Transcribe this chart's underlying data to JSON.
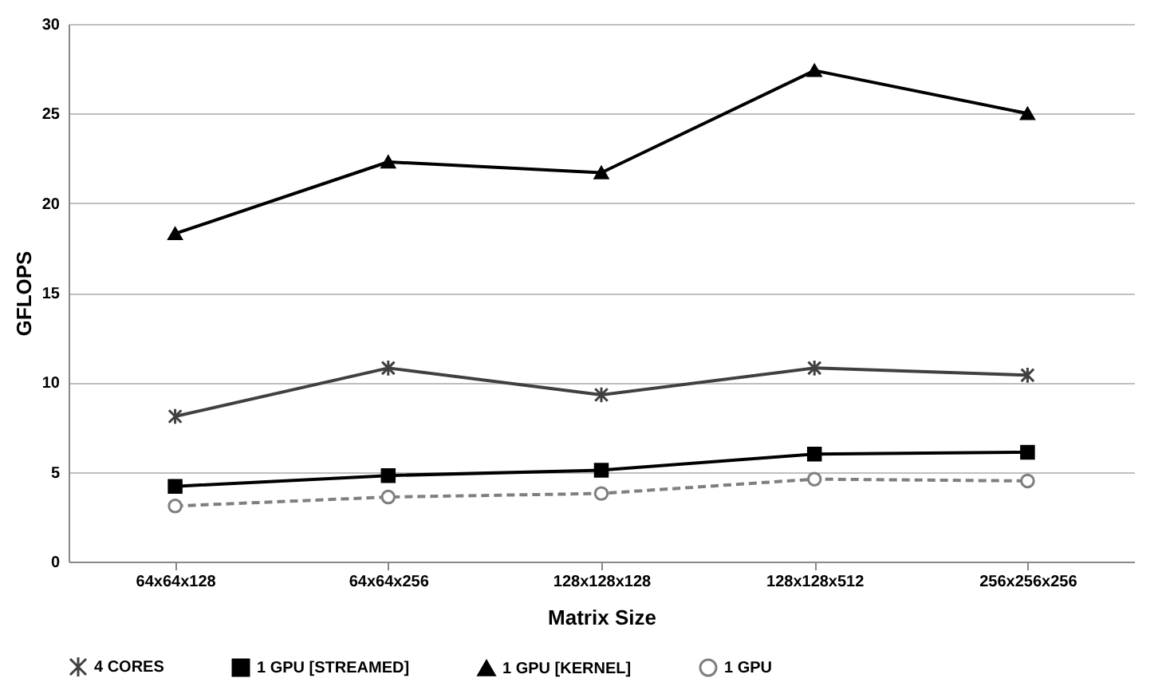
{
  "chart_data": {
    "type": "line",
    "xlabel": "Matrix Size",
    "ylabel": "GFLOPS",
    "categories": [
      "64x64x128",
      "64x64x256",
      "128x128x128",
      "128x128x512",
      "256x256x256"
    ],
    "ylim": [
      0,
      30
    ],
    "yticks": [
      0,
      5,
      10,
      15,
      20,
      25,
      30
    ],
    "grid": "y",
    "legend": "bottom",
    "series": [
      {
        "name": "4 CORES",
        "color": "#404040",
        "marker": "cross",
        "line_style": "solid",
        "values": [
          8.1,
          10.8,
          9.3,
          10.8,
          10.4
        ]
      },
      {
        "name": "1 GPU [STREAMED]",
        "color": "#000000",
        "marker": "square",
        "line_style": "solid",
        "values": [
          4.2,
          4.8,
          5.1,
          6.0,
          6.1
        ]
      },
      {
        "name": "1 GPU [KERNEL]",
        "color": "#000000",
        "marker": "triangle",
        "line_style": "solid",
        "values": [
          18.3,
          22.3,
          21.7,
          27.4,
          25.0
        ]
      },
      {
        "name": "1 GPU",
        "color": "#7f7f7f",
        "marker": "circle",
        "line_style": "dashed",
        "values": [
          3.1,
          3.6,
          3.8,
          4.6,
          4.5
        ]
      }
    ]
  }
}
